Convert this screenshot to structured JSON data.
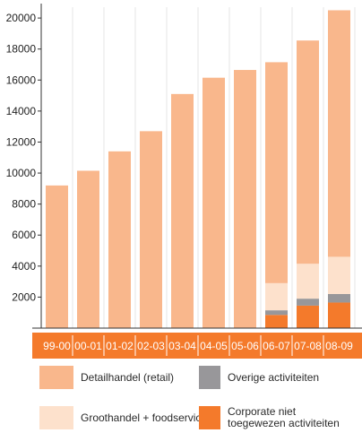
{
  "chart_data": {
    "type": "bar",
    "stacked": true,
    "categories": [
      "99-00",
      "00-01",
      "01-02",
      "02-03",
      "03-04",
      "04-05",
      "05-06",
      "06-07",
      "07-08",
      "08-09"
    ],
    "series": [
      {
        "name": "Corporate niet toegewezen activiteiten",
        "color": "#f47a2b",
        "values": [
          0,
          0,
          0,
          0,
          0,
          0,
          0,
          850,
          1450,
          1650
        ]
      },
      {
        "name": "Overige activiteiten",
        "color": "#98979a",
        "values": [
          0,
          0,
          0,
          0,
          0,
          0,
          0,
          300,
          450,
          550
        ]
      },
      {
        "name": "Groothandel + foodservice",
        "color": "#fde1cc",
        "values": [
          0,
          0,
          0,
          0,
          0,
          0,
          0,
          1750,
          2250,
          2400
        ]
      },
      {
        "name": "Detailhandel (retail)",
        "color": "#f9b78c",
        "values": [
          9200,
          10150,
          11400,
          12700,
          15100,
          16150,
          16650,
          14250,
          14400,
          15900
        ]
      }
    ],
    "yticks": [
      2000,
      4000,
      6000,
      8000,
      10000,
      12000,
      14000,
      16000,
      18000,
      20000
    ],
    "ylim": [
      0,
      20700
    ],
    "grid": true,
    "category_band_color": "#f47a2b",
    "legend": {
      "placement": "bottom",
      "items": [
        {
          "label": "Detailhandel (retail)",
          "color": "#f9b78c"
        },
        {
          "label": "Overige activiteiten",
          "color": "#98979a"
        },
        {
          "label": "Groothandel + foodservice",
          "color": "#fde1cc"
        },
        {
          "label": "Corporate niet toegewezen activiteiten",
          "color": "#f47a2b"
        }
      ]
    }
  }
}
